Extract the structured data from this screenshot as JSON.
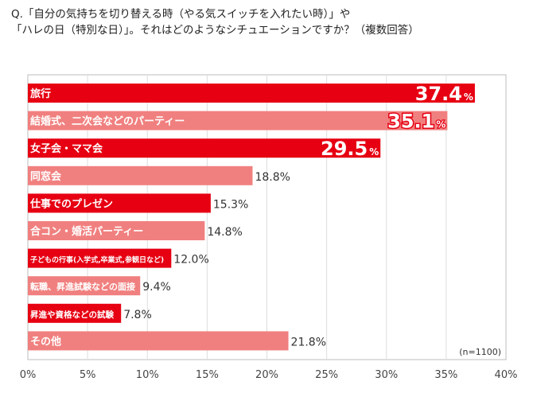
{
  "question": {
    "line1": "Q.「自分の気持ちを切り替える時（やる気スイッチを入れたい時）」や",
    "line2": "「ハレの日（特別な日）」。それはどのようなシチュエーションですか？（複数回答）"
  },
  "chart_data": {
    "type": "bar",
    "orientation": "horizontal",
    "categories": [
      "旅行",
      "結婚式、二次会などのパーティー",
      "女子会・ママ会",
      "同窓会",
      "仕事でのプレゼン",
      "合コン・婚活パーティー",
      "子どもの行事(入学式,卒業式,参観日など)",
      "転職、昇進試験などの面接",
      "昇進や資格などの試験",
      "その他"
    ],
    "values": [
      37.4,
      35.1,
      29.5,
      18.8,
      15.3,
      14.8,
      12.0,
      9.4,
      7.8,
      21.8
    ],
    "value_labels": [
      "37.4",
      "35.1",
      "29.5",
      "18.8%",
      "15.3%",
      "14.8%",
      "12.0%",
      "9.4%",
      "7.8%",
      "21.8%"
    ],
    "percent_sign": "%",
    "bar_colors": [
      "#e60012",
      "#f0807f",
      "#e60012",
      "#f0807f",
      "#e60012",
      "#f0807f",
      "#e60012",
      "#f0807f",
      "#e60012",
      "#f0807f"
    ],
    "xlim": [
      0,
      40
    ],
    "xticks": [
      0,
      5,
      10,
      15,
      20,
      25,
      30,
      35,
      40
    ],
    "xtick_labels": [
      "0%",
      "5%",
      "10%",
      "15%",
      "20%",
      "25%",
      "30%",
      "35%",
      "40%"
    ],
    "note": "(n=1100)",
    "grid": "vertical"
  }
}
